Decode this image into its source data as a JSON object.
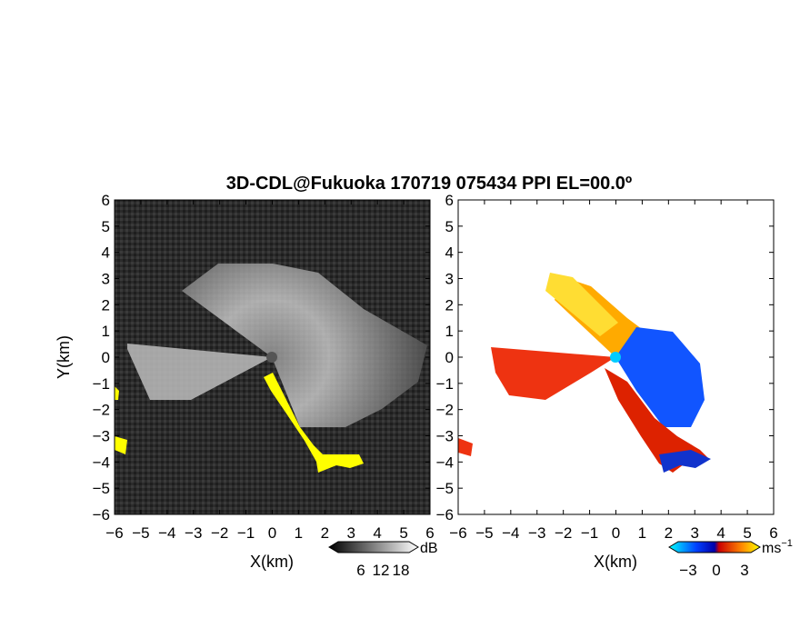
{
  "title": "3D-CDL@Fukuoka 170719 075434 PPI EL=00.0º",
  "chart_data": [
    {
      "type": "heatmap",
      "panel": "left",
      "title": "",
      "xlabel": "X(km)",
      "ylabel": "Y(km)",
      "xlim": [
        -6,
        6
      ],
      "ylim": [
        -6,
        6
      ],
      "x_ticks": [
        -6,
        -5,
        -4,
        -3,
        -2,
        -1,
        0,
        1,
        2,
        3,
        4,
        5,
        6
      ],
      "y_ticks": [
        -6,
        -5,
        -4,
        -3,
        -2,
        -1,
        0,
        1,
        2,
        3,
        4,
        5,
        6
      ],
      "colorbar": {
        "label": "dB",
        "ticks": [
          6,
          12,
          18
        ],
        "colors": [
          "#000000",
          "#ffffff"
        ]
      },
      "field": "grayscale signal intensity, bright fan toward west and north-east quadrant",
      "highlight_color": "#ffff00"
    },
    {
      "type": "heatmap",
      "panel": "right",
      "title": "",
      "xlabel": "X(km)",
      "ylabel": "",
      "xlim": [
        -6,
        6
      ],
      "ylim": [
        -6,
        6
      ],
      "x_ticks": [
        -6,
        -5,
        -4,
        -3,
        -2,
        -1,
        0,
        1,
        2,
        3,
        4,
        5,
        6
      ],
      "y_ticks": [
        -6,
        -5,
        -4,
        -3,
        -2,
        -1,
        0,
        1,
        2,
        3,
        4,
        5,
        6
      ],
      "colorbar": {
        "label": "ms",
        "label_exponent": "−1",
        "ticks": [
          -3,
          0,
          3
        ],
        "colors": [
          "#00ffff",
          "#0000ff",
          "#ff0000",
          "#ffff00"
        ]
      },
      "field": "doppler velocity, blue toward east/south-east, red/yellow toward west and north-west"
    }
  ]
}
